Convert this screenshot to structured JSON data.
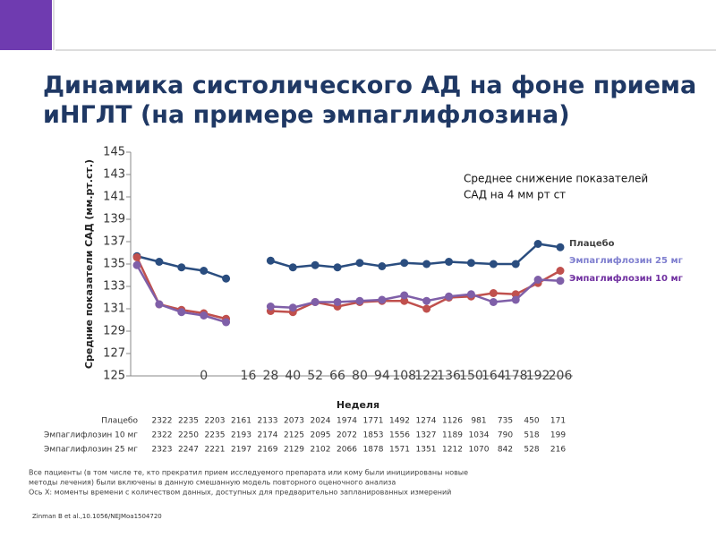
{
  "title": "Динамика систолического АД на фоне приема иНГЛТ  (на примере эмпаглифлозина)",
  "chart_data": {
    "type": "line",
    "ylabel": "Средние показатели САД (мм.рт.ст.)",
    "xlabel": "Неделя",
    "annotation": [
      "Среднее снижение показателей",
      "САД на 4 мм рт ст"
    ],
    "categories": [
      null,
      null,
      null,
      "0",
      null,
      "16",
      "28",
      "40",
      "52",
      "66",
      "80",
      "94",
      "108",
      "122",
      "136",
      "150",
      "164",
      "178",
      "192",
      "206"
    ],
    "series": [
      {
        "name": "Плацебо",
        "color": "#2a4d7f",
        "label_color": "#404040",
        "values": [
          135.7,
          135.2,
          134.7,
          134.4,
          133.7,
          null,
          135.3,
          134.7,
          134.9,
          134.7,
          135.1,
          134.8,
          135.1,
          135.0,
          135.2,
          135.1,
          135.0,
          135.0,
          136.8,
          136.5
        ]
      },
      {
        "name": "Эмпаглифлозин 25 мг",
        "color": "#c0504d",
        "label_color": "#7f7fcf",
        "values": [
          135.6,
          131.4,
          130.9,
          130.6,
          130.1,
          null,
          130.8,
          130.7,
          131.6,
          131.2,
          131.6,
          131.7,
          131.7,
          131.0,
          132.0,
          132.1,
          132.4,
          132.3,
          133.3,
          134.4
        ]
      },
      {
        "name": "Эмпаглифлозин  10 мг",
        "color": "#7f5fa8",
        "label_color": "#7030a0",
        "values": [
          134.9,
          131.4,
          130.7,
          130.4,
          129.8,
          null,
          131.2,
          131.1,
          131.6,
          131.6,
          131.7,
          131.8,
          132.2,
          131.7,
          132.1,
          132.3,
          131.6,
          131.8,
          133.6,
          133.5
        ]
      }
    ],
    "ylim": [
      125,
      145
    ],
    "yticks": [
      125,
      127,
      129,
      131,
      133,
      135,
      137,
      139,
      141,
      143,
      145
    ]
  },
  "at_risk": {
    "rows": [
      {
        "name": "Плацебо",
        "values": [
          "2322",
          "2235",
          "2203",
          "2161",
          "2133",
          "2073",
          "2024",
          "1974",
          "1771",
          "1492",
          "1274",
          "1126",
          "981",
          "735",
          "450",
          "171"
        ]
      },
      {
        "name": "Эмпаглифлозин 10 мг",
        "values": [
          "2322",
          "2250",
          "2235",
          "2193",
          "2174",
          "2125",
          "2095",
          "2072",
          "1853",
          "1556",
          "1327",
          "1189",
          "1034",
          "790",
          "518",
          "199"
        ]
      },
      {
        "name": "Эмпаглифлозин 25 мг",
        "values": [
          "2323",
          "2247",
          "2221",
          "2197",
          "2169",
          "2129",
          "2102",
          "2066",
          "1878",
          "1571",
          "1351",
          "1212",
          "1070",
          "842",
          "528",
          "216"
        ]
      }
    ]
  },
  "notes": [
    "Все пациенты (в том числе те, кто  прекратил прием  исследуемого препарата или кому были инициированы новые",
    "методы лечения) были включены в данную смешанную модель повторного оценочного анализа",
    "Ось X: моменты времени с количеством данных, доступных для предварительно запланированных измерений"
  ],
  "citation": "Zinman B et al.,10.1056/NEJMoa1504720"
}
